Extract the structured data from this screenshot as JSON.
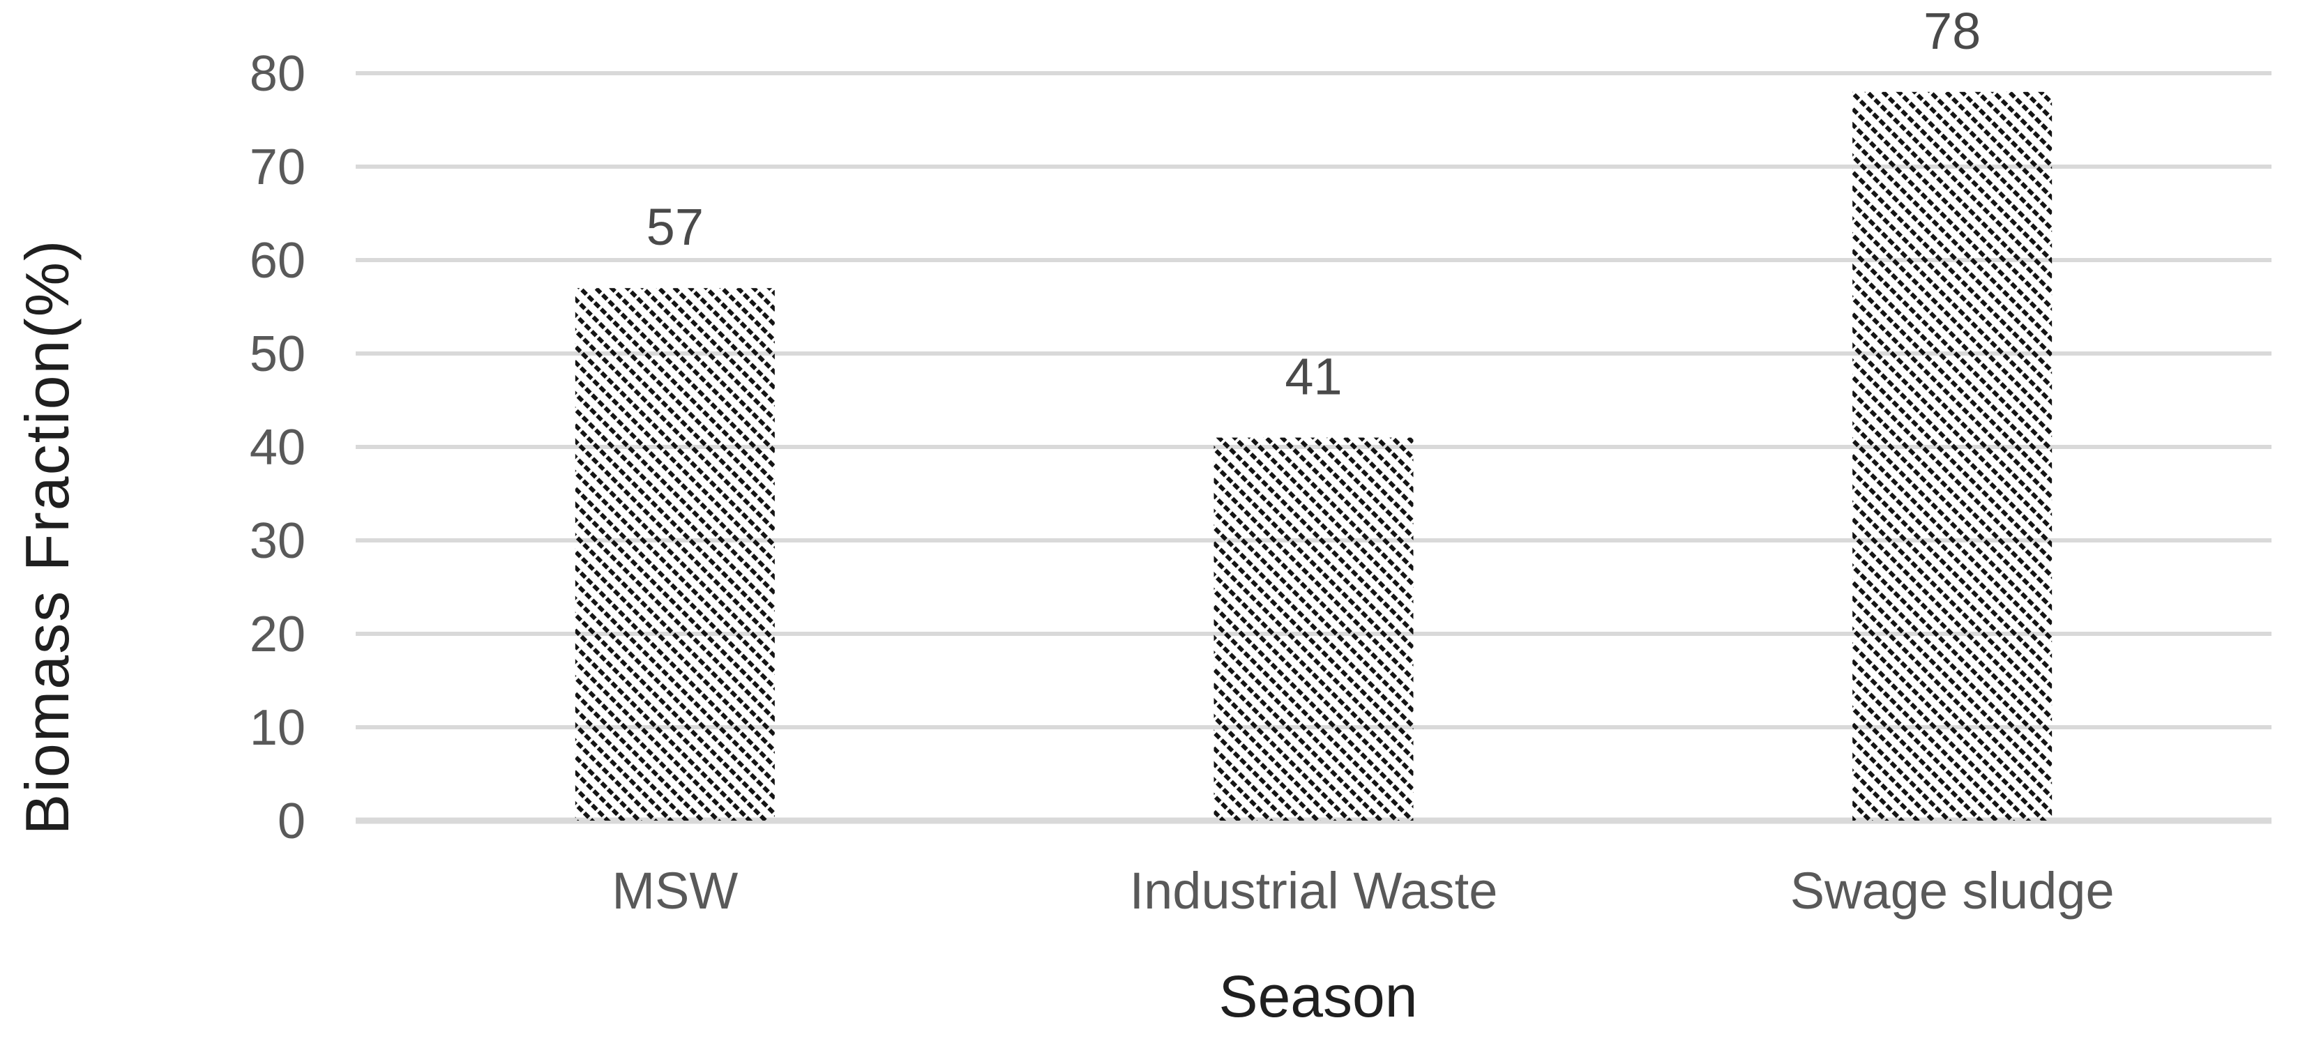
{
  "chart_data": {
    "type": "bar",
    "title": "",
    "categories": [
      "MSW",
      "Industrial Waste",
      "Swage sludge"
    ],
    "values": [
      57,
      41,
      78
    ],
    "data_labels": [
      "57",
      "41",
      "78"
    ],
    "xlabel": "Season",
    "ylabel": "Biomass Fraction(%)",
    "ylim": [
      0,
      80
    ],
    "yticks": [
      0,
      10,
      20,
      30,
      40,
      50,
      60,
      70,
      80
    ],
    "grid": true,
    "legend_position": "none",
    "bar_fill_pattern": "diagonal-hatch-downward",
    "colors": {
      "background": "#ffffff",
      "gridline": "#d9d9d9",
      "axis_line": "#d9d9d9",
      "tick_label": "#595959",
      "category_label": "#595959",
      "data_label": "#4a4a4a",
      "axis_title": "#1f1f1f",
      "bar_hatch": "#141414"
    }
  }
}
